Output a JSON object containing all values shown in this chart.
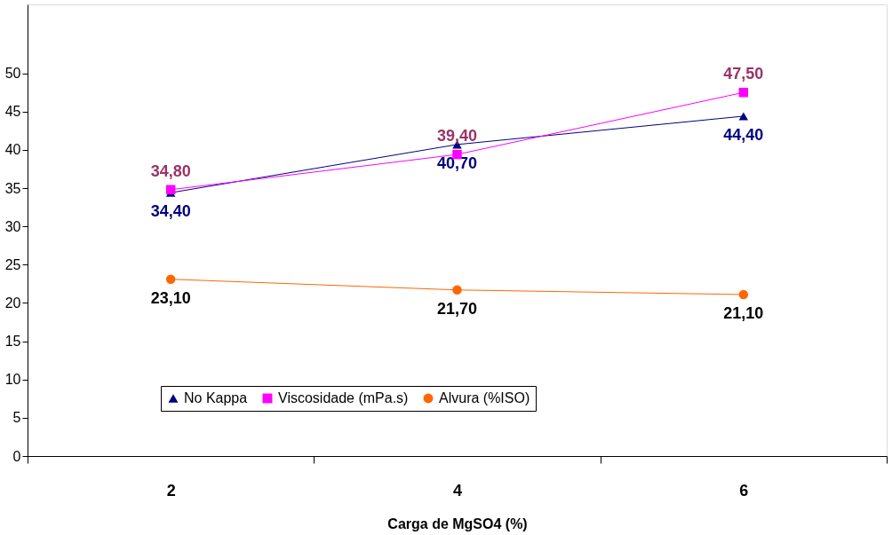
{
  "chart_data": {
    "type": "line",
    "xlabel": "Carga de MgSO4 (%)",
    "categories": [
      "2",
      "4",
      "6"
    ],
    "ylim": [
      0,
      59
    ],
    "yticks": [
      0,
      5,
      10,
      15,
      20,
      25,
      30,
      35,
      40,
      45,
      50
    ],
    "grid": false,
    "legend": "bottom",
    "series": [
      {
        "name": "No Kappa",
        "color": "#000080",
        "marker": "triangle",
        "values": [
          34.4,
          40.7,
          44.4
        ],
        "value_labels": [
          "34,40",
          "40,70",
          "44,40"
        ]
      },
      {
        "name": "Viscosidade (mPa.s)",
        "color": "#ff00ff",
        "marker": "square",
        "values": [
          34.8,
          39.4,
          47.5
        ],
        "value_labels": [
          "34,80",
          "39,40",
          "47,50"
        ]
      },
      {
        "name": "Alvura (%ISO)",
        "color": "#ff6600",
        "marker": "circle",
        "values": [
          23.1,
          21.7,
          21.1
        ],
        "value_labels": [
          "23,10",
          "21,70",
          "21,10"
        ]
      }
    ]
  }
}
